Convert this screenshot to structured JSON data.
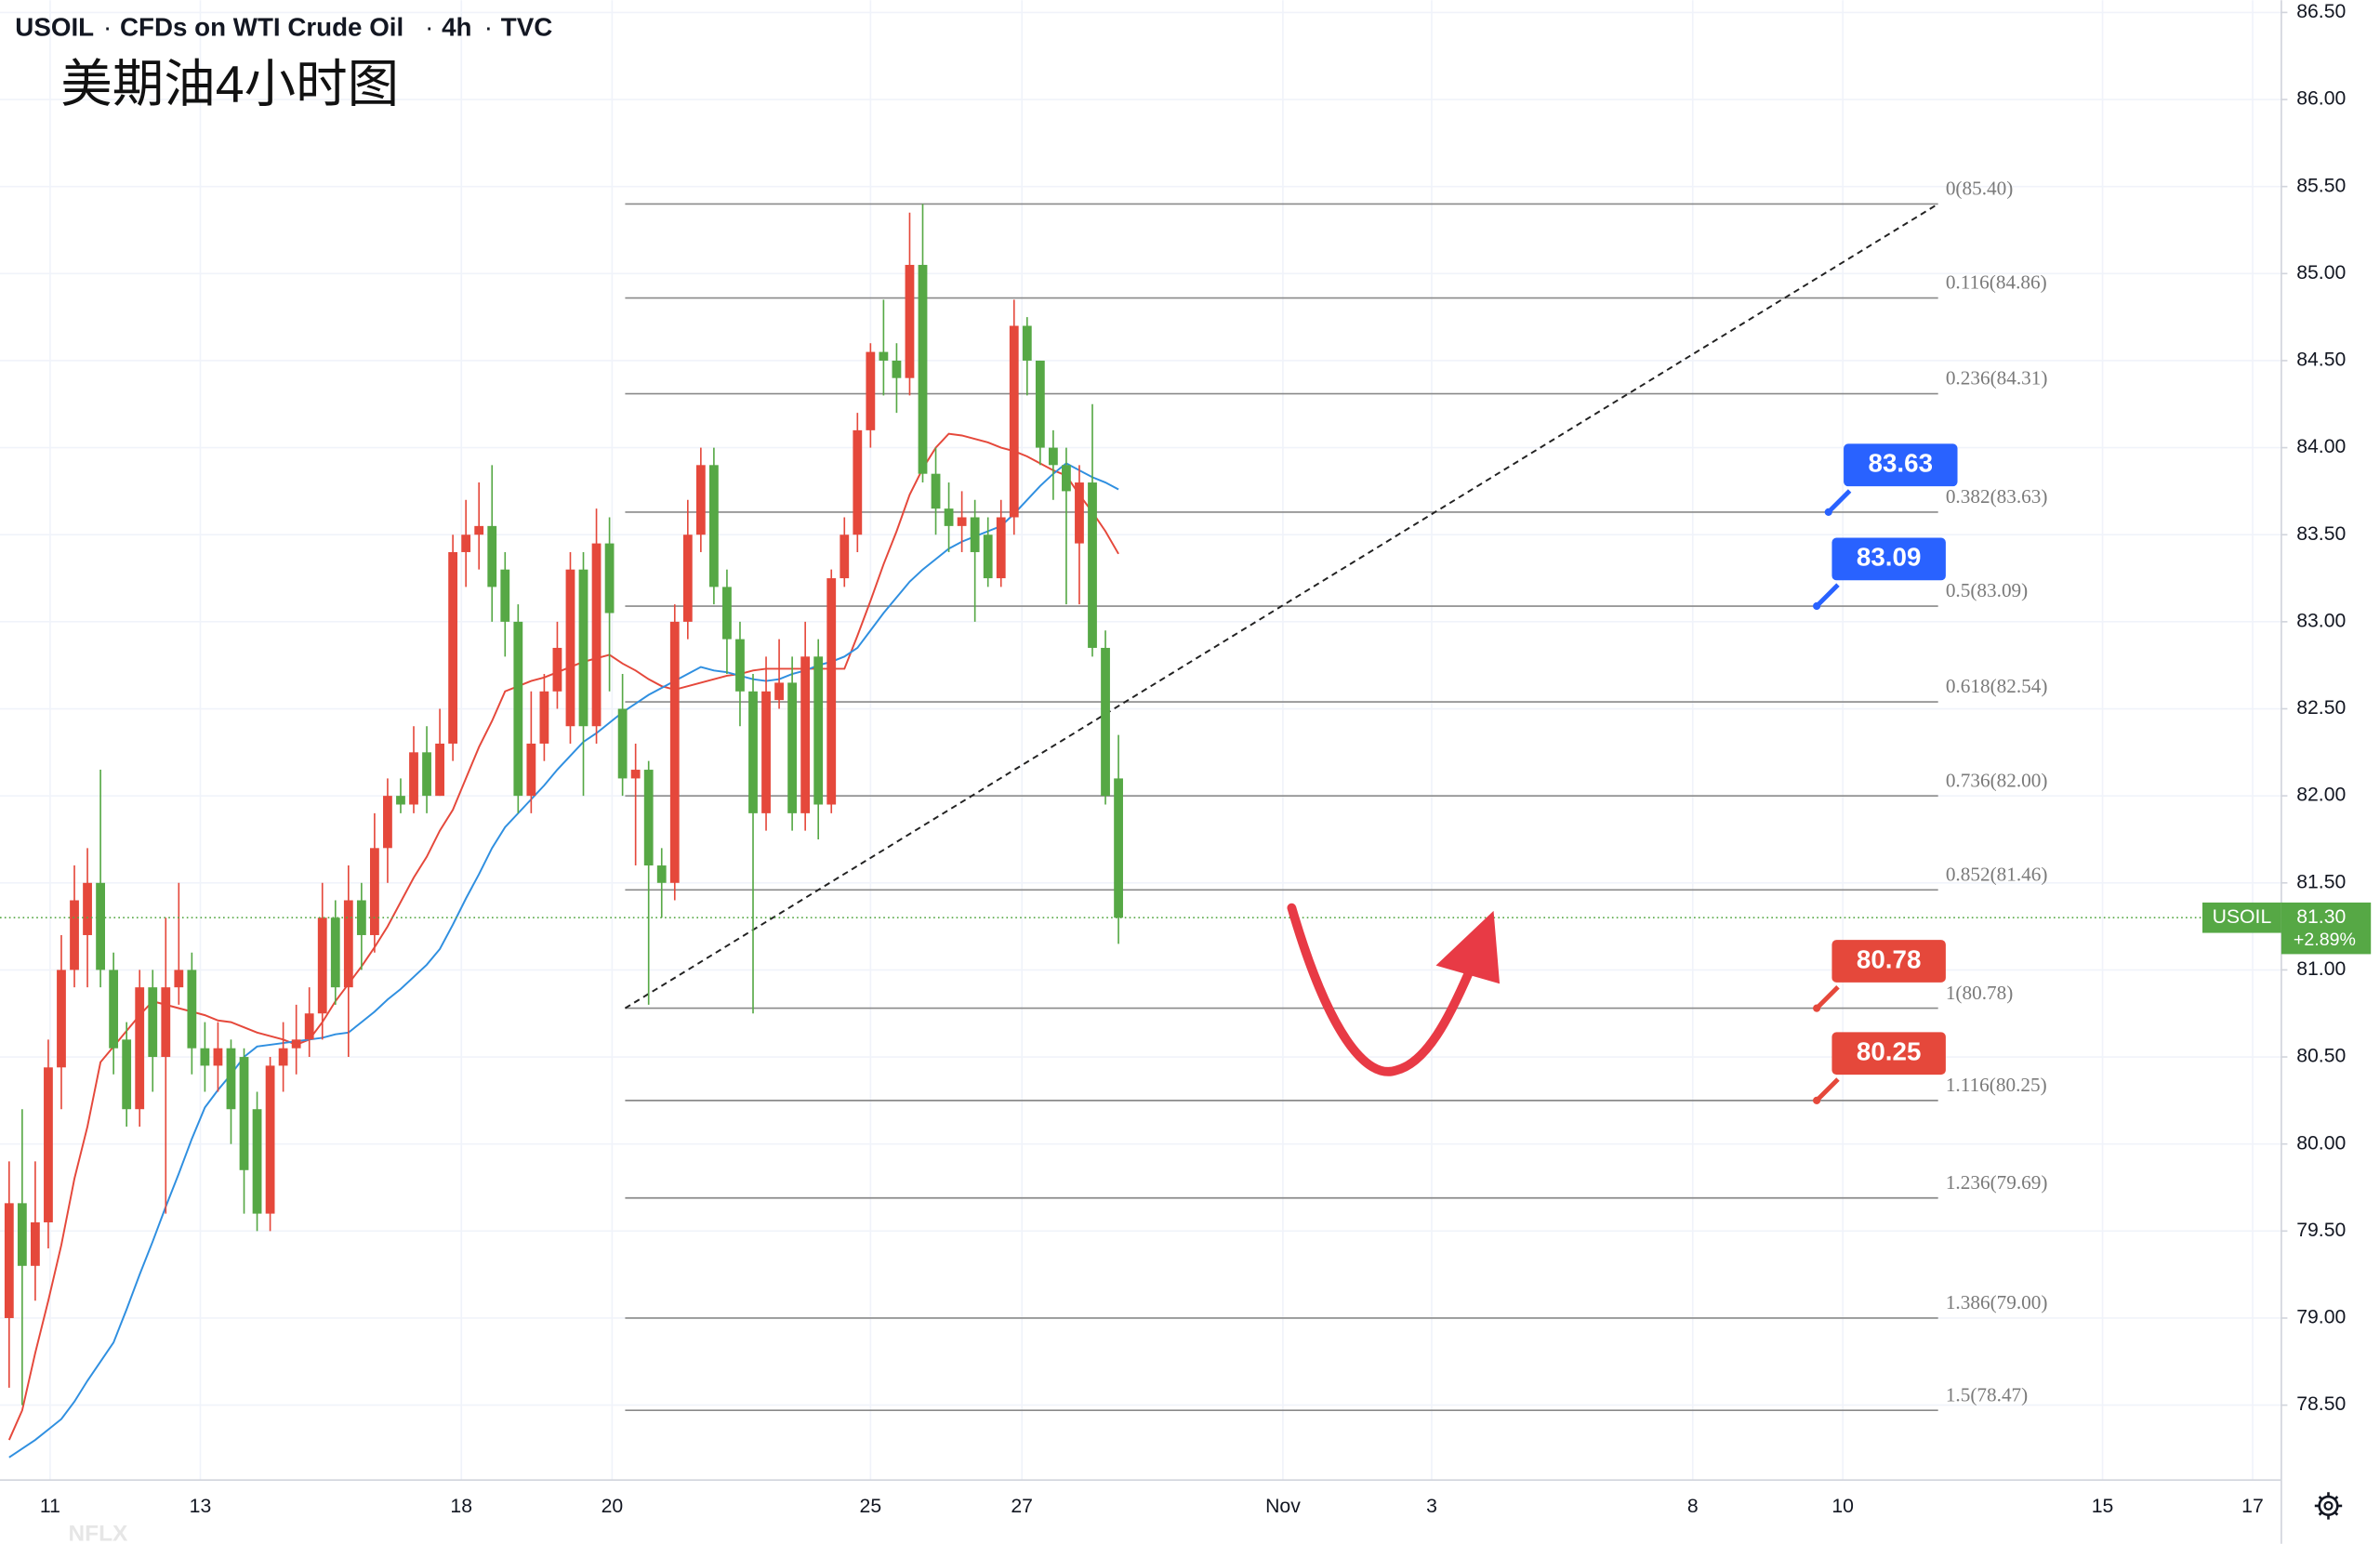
{
  "chart_data": {
    "type": "candlestick",
    "symbol": "USOIL",
    "name": "CFDs on WTI Crude Oil",
    "interval": "4h",
    "source": "TVC",
    "title": "美期油4小时图",
    "watermark": "NFLX",
    "up_color": "#e5483b",
    "down_color": "#56a845",
    "open": [
      79.0,
      79.66,
      79.3,
      79.55,
      80.44,
      81.0,
      81.2,
      81.5,
      81.0,
      80.6,
      80.2,
      80.9,
      80.5,
      80.9,
      81.0,
      80.55,
      80.45,
      80.55,
      80.5,
      80.2,
      79.6,
      80.45,
      80.55,
      80.6,
      80.75,
      81.3,
      80.9,
      81.4,
      81.2,
      81.7,
      82.0,
      81.95,
      82.25,
      82.0,
      82.3,
      83.4,
      83.5,
      83.55,
      83.3,
      83.0,
      82.0,
      82.3,
      82.6,
      82.4,
      83.3,
      82.4,
      83.45,
      82.5,
      82.1,
      82.15,
      81.6,
      81.5,
      83.0,
      83.5,
      83.9,
      83.2,
      82.9,
      82.6,
      81.9,
      82.55,
      82.65,
      81.9,
      82.8,
      81.95,
      83.25,
      83.5,
      84.1,
      84.55,
      84.5,
      84.4,
      85.05,
      83.85,
      83.65,
      83.55,
      83.6,
      83.5,
      83.25,
      83.6,
      84.7,
      84.5,
      84.0,
      83.9,
      83.45,
      83.8,
      82.85,
      82.1
    ],
    "high": [
      79.9,
      80.2,
      79.9,
      80.6,
      81.2,
      81.6,
      81.7,
      82.15,
      81.1,
      80.7,
      81.0,
      81.0,
      81.3,
      81.5,
      81.1,
      80.7,
      80.7,
      80.6,
      80.55,
      80.3,
      80.5,
      80.7,
      80.8,
      80.9,
      81.5,
      81.4,
      81.6,
      81.5,
      81.9,
      82.1,
      82.1,
      82.4,
      82.4,
      82.5,
      83.5,
      83.7,
      83.8,
      83.9,
      83.4,
      83.1,
      82.6,
      82.7,
      83.0,
      83.4,
      83.4,
      83.65,
      83.6,
      82.7,
      82.3,
      82.2,
      81.7,
      83.1,
      83.7,
      84.0,
      84.0,
      83.3,
      83.0,
      82.7,
      82.8,
      82.9,
      82.8,
      83.0,
      82.9,
      83.3,
      83.6,
      84.2,
      84.6,
      84.85,
      84.6,
      85.35,
      85.4,
      84.0,
      83.8,
      83.75,
      83.7,
      83.6,
      83.7,
      84.85,
      84.75,
      84.5,
      84.1,
      84.0,
      83.9,
      84.25,
      82.95,
      82.35
    ],
    "low": [
      78.6,
      78.5,
      79.1,
      79.4,
      80.2,
      80.9,
      80.9,
      80.9,
      80.4,
      80.1,
      80.1,
      80.3,
      79.6,
      80.8,
      80.4,
      80.3,
      80.3,
      80.0,
      79.6,
      79.5,
      79.5,
      80.3,
      80.4,
      80.5,
      80.6,
      80.8,
      80.5,
      81.0,
      81.1,
      81.5,
      81.9,
      81.9,
      81.9,
      82.0,
      82.2,
      83.2,
      83.3,
      83.0,
      82.8,
      81.9,
      81.9,
      82.2,
      82.5,
      82.3,
      82.0,
      82.3,
      82.6,
      82.0,
      81.6,
      80.8,
      81.3,
      81.4,
      82.9,
      83.4,
      83.1,
      82.7,
      82.4,
      80.75,
      81.8,
      82.5,
      81.8,
      81.8,
      81.75,
      81.9,
      83.2,
      83.4,
      84.0,
      84.3,
      84.2,
      84.3,
      83.8,
      83.5,
      83.4,
      83.4,
      83.0,
      83.2,
      83.2,
      83.5,
      84.3,
      83.9,
      83.7,
      83.1,
      83.1,
      82.8,
      81.95,
      81.15
    ],
    "close": [
      79.66,
      79.3,
      79.55,
      80.44,
      81.0,
      81.4,
      81.5,
      81.0,
      80.55,
      80.2,
      80.9,
      80.5,
      80.9,
      81.0,
      80.55,
      80.45,
      80.55,
      80.2,
      79.85,
      79.6,
      80.45,
      80.55,
      80.6,
      80.75,
      81.3,
      80.9,
      81.4,
      81.2,
      81.7,
      82.0,
      81.95,
      82.25,
      82.0,
      82.3,
      83.4,
      83.5,
      83.55,
      83.2,
      83.0,
      82.0,
      82.3,
      82.6,
      82.85,
      83.3,
      82.4,
      83.45,
      83.05,
      82.1,
      82.15,
      81.6,
      81.5,
      83.0,
      83.5,
      83.9,
      83.2,
      82.9,
      82.6,
      81.9,
      82.6,
      82.65,
      81.9,
      82.8,
      81.95,
      83.25,
      83.5,
      84.1,
      84.55,
      84.5,
      84.4,
      85.05,
      83.85,
      83.65,
      83.55,
      83.6,
      83.4,
      83.25,
      83.6,
      84.7,
      84.5,
      84.0,
      83.9,
      83.75,
      83.8,
      82.85,
      82.0,
      81.3
    ],
    "ma": [
      {
        "color": "#e5483b",
        "values": [
          78.3,
          78.47,
          78.8,
          79.1,
          79.42,
          79.8,
          80.1,
          80.47,
          80.56,
          80.65,
          80.74,
          80.82,
          80.8,
          80.78,
          80.76,
          80.74,
          80.71,
          80.7,
          80.67,
          80.64,
          80.62,
          80.6,
          80.57,
          80.6,
          80.7,
          80.82,
          80.92,
          81.02,
          81.13,
          81.25,
          81.39,
          81.53,
          81.65,
          81.8,
          81.92,
          82.1,
          82.28,
          82.43,
          82.6,
          82.63,
          82.66,
          82.68,
          82.71,
          82.74,
          82.77,
          82.79,
          82.81,
          82.76,
          82.72,
          82.67,
          82.63,
          82.61,
          82.63,
          82.65,
          82.67,
          82.69,
          82.7,
          82.72,
          82.73,
          82.73,
          82.73,
          82.73,
          82.73,
          82.73,
          82.73,
          82.92,
          83.12,
          83.33,
          83.52,
          83.73,
          83.88,
          84.0,
          84.08,
          84.07,
          84.05,
          84.03,
          84.0,
          83.98,
          83.95,
          83.91,
          83.87,
          83.84,
          83.73,
          83.63,
          83.52,
          83.39
        ]
      },
      {
        "color": "#2f8fe0",
        "values": [
          78.2,
          78.25,
          78.3,
          78.36,
          78.42,
          78.52,
          78.64,
          78.75,
          78.86,
          79.05,
          79.25,
          79.44,
          79.64,
          79.83,
          80.03,
          80.21,
          80.31,
          80.4,
          80.5,
          80.56,
          80.57,
          80.58,
          80.59,
          80.6,
          80.61,
          80.63,
          80.64,
          80.7,
          80.76,
          80.83,
          80.89,
          80.96,
          81.03,
          81.12,
          81.26,
          81.41,
          81.55,
          81.7,
          81.82,
          81.9,
          81.98,
          82.06,
          82.15,
          82.23,
          82.31,
          82.36,
          82.42,
          82.48,
          82.53,
          82.58,
          82.62,
          82.66,
          82.7,
          82.74,
          82.72,
          82.71,
          82.69,
          82.67,
          82.66,
          82.67,
          82.7,
          82.72,
          82.75,
          82.77,
          82.8,
          82.85,
          82.95,
          83.05,
          83.14,
          83.23,
          83.3,
          83.36,
          83.42,
          83.46,
          83.49,
          83.52,
          83.55,
          83.62,
          83.7,
          83.78,
          83.85,
          83.91,
          83.87,
          83.83,
          83.8,
          83.76
        ]
      }
    ],
    "xlim": [
      -0.7,
      174.1
    ],
    "xticks": [
      {
        "value": 3.14,
        "label": "11"
      },
      {
        "value": 14.65,
        "label": "13"
      },
      {
        "value": 34.65,
        "label": "18"
      },
      {
        "value": 46.2,
        "label": "20"
      },
      {
        "value": 66.0,
        "label": "25"
      },
      {
        "value": 77.6,
        "label": "27"
      },
      {
        "value": 97.6,
        "label": "Nov"
      },
      {
        "value": 109.0,
        "label": "3"
      },
      {
        "value": 129.0,
        "label": "8"
      },
      {
        "value": 140.5,
        "label": "10"
      },
      {
        "value": 160.4,
        "label": "15"
      },
      {
        "value": 171.9,
        "label": "17"
      }
    ],
    "ylim": [
      78.07,
      86.57
    ],
    "yticks": [
      {
        "value": 78.5,
        "label": "78.50"
      },
      {
        "value": 79,
        "label": "79.00"
      },
      {
        "value": 79.5,
        "label": "79.50"
      },
      {
        "value": 80,
        "label": "80.00"
      },
      {
        "value": 80.5,
        "label": "80.50"
      },
      {
        "value": 81,
        "label": "81.00"
      },
      {
        "value": 81.5,
        "label": "81.50"
      },
      {
        "value": 82,
        "label": "82.00"
      },
      {
        "value": 82.5,
        "label": "82.50"
      },
      {
        "value": 83,
        "label": "83.00"
      },
      {
        "value": 83.5,
        "label": "83.50"
      },
      {
        "value": 84,
        "label": "84.00"
      },
      {
        "value": 84.5,
        "label": "84.50"
      },
      {
        "value": 85,
        "label": "85.00"
      },
      {
        "value": 85.5,
        "label": "85.50"
      },
      {
        "value": 86,
        "label": "86.00"
      },
      {
        "value": 86.5,
        "label": "86.50"
      }
    ],
    "grid": true,
    "fib": {
      "start": 47.2,
      "end": 147.8,
      "color": "#8a8a8a",
      "levels": [
        {
          "value": 85.4,
          "label": "0(85.40)"
        },
        {
          "value": 84.86,
          "label": "0.116(84.86)"
        },
        {
          "value": 84.31,
          "label": "0.236(84.31)"
        },
        {
          "value": 83.63,
          "label": "0.382(83.63)"
        },
        {
          "value": 83.09,
          "label": "0.5(83.09)"
        },
        {
          "value": 82.54,
          "label": "0.618(82.54)"
        },
        {
          "value": 82.0,
          "label": "0.736(82.00)"
        },
        {
          "value": 81.46,
          "label": "0.852(81.46)"
        },
        {
          "value": 80.78,
          "label": "1(80.78)"
        },
        {
          "value": 80.25,
          "label": "1.116(80.25)"
        },
        {
          "value": 79.69,
          "label": "1.236(79.69)"
        },
        {
          "value": 79.0,
          "label": "1.386(79.00)"
        },
        {
          "value": 78.47,
          "label": "1.5(78.47)"
        }
      ]
    },
    "trendline": {
      "x": [
        47.2,
        147.8
      ],
      "y": [
        80.78,
        85.4
      ]
    },
    "callouts": [
      {
        "x": 139.4,
        "value": 83.63,
        "color": "#2962ff"
      },
      {
        "x": 138.5,
        "value": 83.09,
        "color": "#2962ff"
      },
      {
        "x": 138.5,
        "value": 80.78,
        "color": "#e5483b"
      },
      {
        "x": 138.5,
        "value": 80.25,
        "color": "#e5483b"
      }
    ],
    "last": {
      "symbol": "USOIL",
      "price": 81.3,
      "price_label": "81.30",
      "change": "+2.89%",
      "color": "#56a845"
    }
  }
}
